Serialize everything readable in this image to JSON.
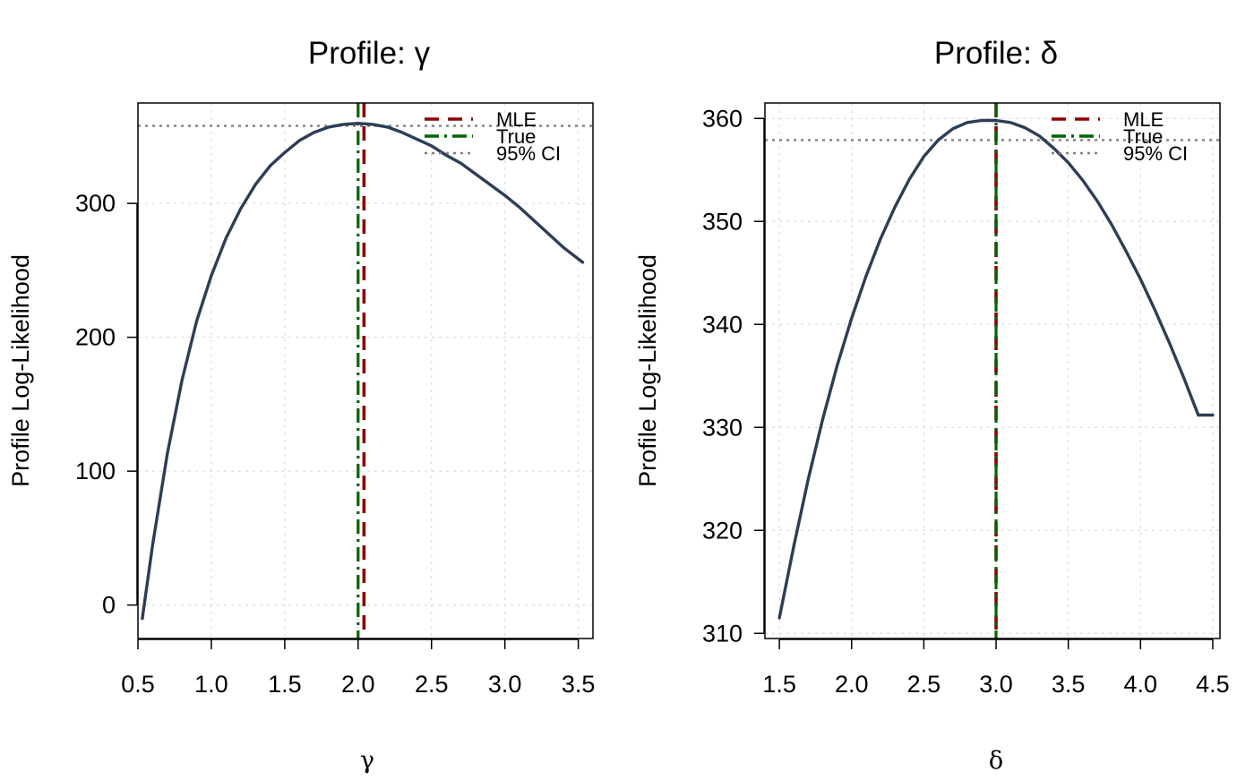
{
  "chart_data": [
    {
      "type": "line",
      "title": "Profile: γ",
      "xlabel": "γ",
      "ylabel": "Profile Log-Likelihood",
      "xlim": [
        0.5,
        3.6
      ],
      "ylim": [
        -25,
        375
      ],
      "xticks": [
        "0.5",
        "1.0",
        "1.5",
        "2.0",
        "2.5",
        "3.0",
        "3.5"
      ],
      "xtick_values": [
        0.5,
        1.0,
        1.5,
        2.0,
        2.5,
        3.0,
        3.5
      ],
      "yticks": [
        "0",
        "100",
        "200",
        "300"
      ],
      "ytick_values": [
        0,
        100,
        200,
        300
      ],
      "grid": true,
      "legend_position": "top-right",
      "legend": [
        {
          "label": "MLE",
          "color": "#8b0000",
          "style": "dashed"
        },
        {
          "label": "True",
          "color": "#006400",
          "style": "dashdot"
        },
        {
          "label": "95% CI",
          "color": "#808080",
          "style": "dotted"
        }
      ],
      "series": [
        {
          "color": "#2e3d55",
          "x": [
            0.53,
            0.6,
            0.7,
            0.8,
            0.9,
            1.0,
            1.1,
            1.2,
            1.3,
            1.4,
            1.5,
            1.6,
            1.7,
            1.8,
            1.9,
            2.0,
            2.1,
            2.2,
            2.3,
            2.4,
            2.5,
            2.6,
            2.7,
            2.8,
            2.9,
            3.0,
            3.1,
            3.2,
            3.3,
            3.4,
            3.53
          ],
          "y": [
            -10,
            45,
            113,
            168,
            212,
            246,
            274,
            296,
            314,
            328,
            338,
            347,
            353,
            357,
            359,
            359.8,
            359,
            357,
            353,
            348,
            343,
            336,
            330,
            322,
            314,
            306,
            297,
            287,
            277,
            267,
            256
          ]
        }
      ],
      "mle": 2.04,
      "true_value": 2.0,
      "ci_level": 357.9
    },
    {
      "type": "line",
      "title": "Profile: δ",
      "xlabel": "δ",
      "ylabel": "Profile Log-Likelihood",
      "xlim": [
        1.4,
        4.55
      ],
      "ylim": [
        309.5,
        361.5
      ],
      "xticks": [
        "1.5",
        "2.0",
        "2.5",
        "3.0",
        "3.5",
        "4.0",
        "4.5"
      ],
      "xtick_values": [
        1.5,
        2.0,
        2.5,
        3.0,
        3.5,
        4.0,
        4.5
      ],
      "yticks": [
        "310",
        "320",
        "330",
        "340",
        "350",
        "360"
      ],
      "ytick_values": [
        310,
        320,
        330,
        340,
        350,
        360
      ],
      "grid": true,
      "legend_position": "top-right",
      "legend": [
        {
          "label": "MLE",
          "color": "#8b0000",
          "style": "dashed"
        },
        {
          "label": "True",
          "color": "#006400",
          "style": "dashdot"
        },
        {
          "label": "95% CI",
          "color": "#808080",
          "style": "dotted"
        }
      ],
      "series": [
        {
          "color": "#2e3d55",
          "x": [
            1.5,
            1.6,
            1.7,
            1.8,
            1.9,
            2.0,
            2.1,
            2.2,
            2.3,
            2.4,
            2.5,
            2.6,
            2.7,
            2.8,
            2.9,
            3.0,
            3.1,
            3.2,
            3.3,
            3.4,
            3.5,
            3.6,
            3.7,
            3.8,
            3.9,
            4.0,
            4.1,
            4.2,
            4.3,
            4.4,
            4.5
          ],
          "y": [
            311.5,
            318.5,
            325,
            330.8,
            336,
            340.6,
            344.7,
            348.3,
            351.4,
            354.1,
            356.3,
            357.9,
            359,
            359.6,
            359.8,
            359.8,
            359.6,
            359.1,
            358.3,
            357.1,
            355.7,
            354,
            352,
            349.7,
            347.1,
            344.4,
            341.4,
            338.2,
            334.8,
            331.2,
            331.2
          ]
        }
      ],
      "mle": 3.0,
      "true_value": 3.0,
      "ci_level": 357.9
    }
  ]
}
